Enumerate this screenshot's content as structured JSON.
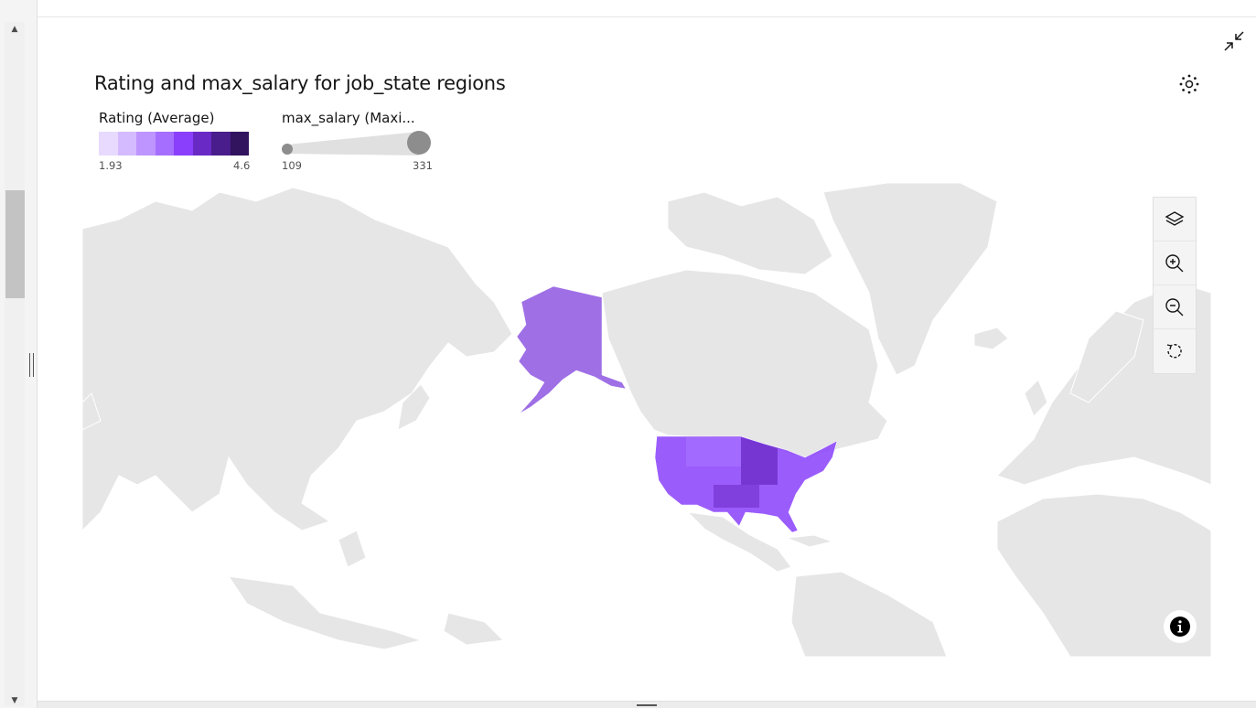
{
  "chart": {
    "title": "Rating and max_salary for job_state regions"
  },
  "legend": {
    "color": {
      "title": "Rating (Average)",
      "min": "1.93",
      "max": "4.6",
      "ramp": [
        "#e8daff",
        "#d4bbff",
        "#be95ff",
        "#a56eff",
        "#8a3ffc",
        "#6929c4",
        "#491d8b",
        "#31135e"
      ]
    },
    "size": {
      "title": "max_salary (Maxi...",
      "min": "109",
      "max": "331"
    }
  },
  "map": {
    "land_color": "#e6e6e6",
    "highlight_region": "United States",
    "highlight_color": "#8a3ffc"
  },
  "icons": {
    "collapse": "collapse-icon",
    "settings": "settings-icon",
    "layers": "layers-icon",
    "zoom_in": "zoom-in-icon",
    "zoom_out": "zoom-out-icon",
    "reset": "reset-view-icon",
    "info": "info-icon"
  }
}
